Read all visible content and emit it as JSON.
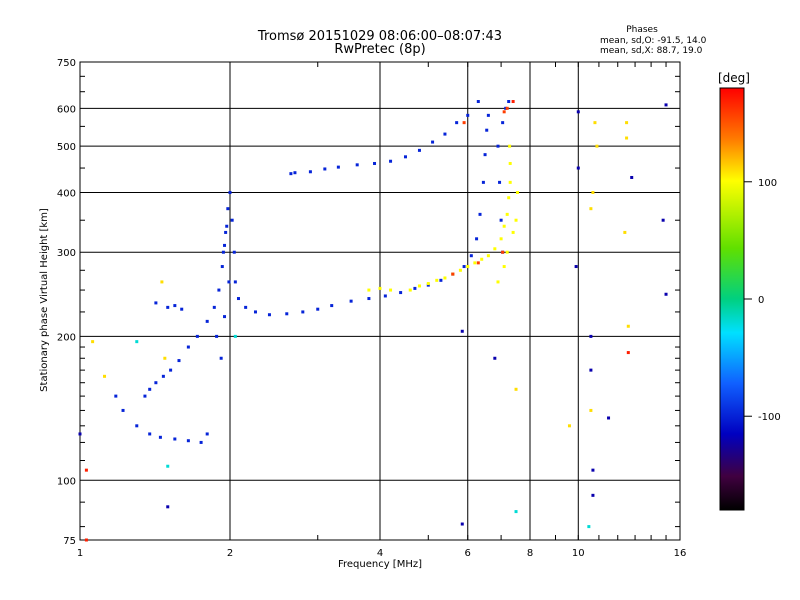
{
  "header": {
    "title": "Tromsø 20151029 08:06:00–08:07:43",
    "subtitle": "RwPretec (8p)",
    "stats_title": "Phases",
    "stats_o": "mean, sd,O:  -91.5, 14.0",
    "stats_x": "mean, sd,X:   88.7, 19.0"
  },
  "colorbar": {
    "unit": "[deg]",
    "ticks": [
      "100",
      "0",
      "-100"
    ],
    "tick_values": [
      100,
      0,
      -100
    ],
    "range": [
      -180,
      180
    ]
  },
  "chart_data": {
    "type": "scatter",
    "title": "Tromsø 20151029 08:06:00–08:07:43",
    "subtitle": "RwPretec (8p)",
    "xlabel": "Frequency [MHz]",
    "ylabel": "Stationary phase Virtual Height [km]",
    "xscale": "log",
    "yscale": "log",
    "xlim": [
      1,
      16
    ],
    "ylim": [
      75,
      750
    ],
    "xticks": [
      1,
      2,
      4,
      6,
      8,
      10,
      16
    ],
    "xtick_labels": [
      "1",
      "2",
      "4",
      "6",
      "8",
      "10",
      "16"
    ],
    "yticks": [
      75,
      100,
      200,
      300,
      400,
      500,
      600,
      750
    ],
    "ytick_labels": [
      "75",
      "100",
      "200",
      "300",
      "400",
      "500",
      "600",
      "750"
    ],
    "grid": true,
    "series": [
      {
        "color_phase": -100,
        "points": [
          [
            1.35,
            150
          ],
          [
            1.38,
            155
          ],
          [
            1.42,
            160
          ],
          [
            1.47,
            165
          ],
          [
            1.52,
            170
          ],
          [
            1.58,
            178
          ],
          [
            1.65,
            190
          ],
          [
            1.72,
            200
          ],
          [
            1.8,
            215
          ],
          [
            1.86,
            230
          ],
          [
            1.9,
            250
          ],
          [
            1.93,
            280
          ],
          [
            1.95,
            310
          ],
          [
            1.97,
            340
          ],
          [
            1.98,
            370
          ],
          [
            2.0,
            400
          ],
          [
            2.02,
            350
          ],
          [
            2.04,
            300
          ],
          [
            2.05,
            260
          ],
          [
            2.08,
            240
          ],
          [
            2.15,
            230
          ],
          [
            2.25,
            225
          ],
          [
            2.4,
            222
          ],
          [
            2.6,
            223
          ],
          [
            2.8,
            225
          ],
          [
            3.0,
            228
          ],
          [
            3.2,
            232
          ],
          [
            3.5,
            237
          ],
          [
            3.8,
            240
          ],
          [
            4.1,
            243
          ],
          [
            4.4,
            247
          ],
          [
            4.7,
            252
          ],
          [
            5.0,
            256
          ],
          [
            5.3,
            262
          ],
          [
            5.6,
            270
          ],
          [
            5.9,
            280
          ],
          [
            6.1,
            295
          ],
          [
            6.25,
            320
          ],
          [
            6.35,
            360
          ],
          [
            6.45,
            420
          ],
          [
            6.5,
            480
          ],
          [
            6.55,
            540
          ],
          [
            6.6,
            580
          ],
          [
            6.3,
            620
          ],
          [
            6.0,
            580
          ],
          [
            5.7,
            560
          ],
          [
            5.4,
            530
          ],
          [
            5.1,
            510
          ],
          [
            4.8,
            490
          ],
          [
            4.5,
            475
          ],
          [
            4.2,
            465
          ],
          [
            3.9,
            460
          ],
          [
            3.6,
            457
          ],
          [
            3.3,
            452
          ],
          [
            3.1,
            448
          ],
          [
            2.9,
            442
          ],
          [
            2.7,
            440
          ],
          [
            2.65,
            438
          ],
          [
            1.5,
            230
          ],
          [
            1.55,
            232
          ],
          [
            1.6,
            228
          ],
          [
            1.42,
            235
          ],
          [
            1.38,
            125
          ],
          [
            1.45,
            123
          ],
          [
            1.55,
            122
          ],
          [
            1.65,
            121
          ],
          [
            1.75,
            120
          ],
          [
            1.8,
            125
          ],
          [
            1.3,
            130
          ],
          [
            1.22,
            140
          ],
          [
            1.18,
            150
          ],
          [
            1.92,
            180
          ],
          [
            1.88,
            200
          ],
          [
            1.95,
            220
          ],
          [
            1.99,
            260
          ],
          [
            1.96,
            330
          ],
          [
            1.94,
            300
          ],
          [
            7.05,
            300
          ],
          [
            7.0,
            350
          ],
          [
            6.95,
            420
          ],
          [
            6.9,
            500
          ],
          [
            7.05,
            560
          ],
          [
            7.15,
            600
          ],
          [
            7.25,
            620
          ]
        ]
      },
      {
        "color_phase": 100,
        "points": [
          [
            4.6,
            250
          ],
          [
            4.8,
            255
          ],
          [
            5.0,
            258
          ],
          [
            5.2,
            262
          ],
          [
            5.4,
            265
          ],
          [
            5.6,
            270
          ],
          [
            5.8,
            275
          ],
          [
            6.0,
            280
          ],
          [
            6.2,
            285
          ],
          [
            6.4,
            290
          ],
          [
            6.6,
            295
          ],
          [
            6.8,
            305
          ],
          [
            7.0,
            320
          ],
          [
            7.1,
            340
          ],
          [
            7.2,
            360
          ],
          [
            7.25,
            390
          ],
          [
            7.3,
            420
          ],
          [
            7.3,
            460
          ],
          [
            7.28,
            500
          ],
          [
            3.8,
            250
          ],
          [
            4.0,
            252
          ],
          [
            4.2,
            250
          ],
          [
            6.9,
            260
          ],
          [
            7.1,
            280
          ],
          [
            7.2,
            300
          ],
          [
            7.4,
            330
          ],
          [
            7.5,
            350
          ],
          [
            7.55,
            400
          ]
        ]
      },
      {
        "color_phase": 160,
        "points": [
          [
            7.1,
            590
          ],
          [
            7.2,
            600
          ],
          [
            7.05,
            300
          ],
          [
            5.9,
            560
          ],
          [
            5.6,
            270
          ],
          [
            6.3,
            285
          ]
        ]
      },
      {
        "color_phase": 110,
        "points": [
          [
            10.8,
            560
          ],
          [
            10.9,
            500
          ],
          [
            10.7,
            400
          ],
          [
            10.6,
            370
          ],
          [
            12.5,
            560
          ],
          [
            12.5,
            520
          ],
          [
            12.4,
            330
          ],
          [
            12.6,
            210
          ],
          [
            10.6,
            140
          ],
          [
            9.6,
            130
          ],
          [
            7.5,
            155
          ],
          [
            1.06,
            195
          ],
          [
            1.12,
            165
          ],
          [
            1.48,
            180
          ],
          [
            1.46,
            260
          ]
        ]
      },
      {
        "color_phase": -120,
        "points": [
          [
            10.0,
            590
          ],
          [
            10.0,
            450
          ],
          [
            9.9,
            280
          ],
          [
            10.6,
            200
          ],
          [
            10.6,
            170
          ],
          [
            10.7,
            105
          ],
          [
            10.7,
            93
          ],
          [
            11.5,
            135
          ],
          [
            12.8,
            430
          ],
          [
            14.8,
            350
          ],
          [
            15.0,
            610
          ],
          [
            5.85,
            205
          ],
          [
            5.85,
            81
          ],
          [
            6.8,
            180
          ],
          [
            1.0,
            125
          ],
          [
            1.5,
            88
          ],
          [
            15.0,
            245
          ]
        ]
      },
      {
        "color_phase": -20,
        "points": [
          [
            1.5,
            107
          ],
          [
            7.5,
            86
          ],
          [
            10.5,
            80
          ],
          [
            2.05,
            200
          ],
          [
            1.3,
            195
          ]
        ]
      },
      {
        "color_phase": 170,
        "points": [
          [
            1.03,
            105
          ],
          [
            1.03,
            75
          ],
          [
            12.6,
            185
          ],
          [
            7.4,
            620
          ]
        ]
      }
    ]
  }
}
